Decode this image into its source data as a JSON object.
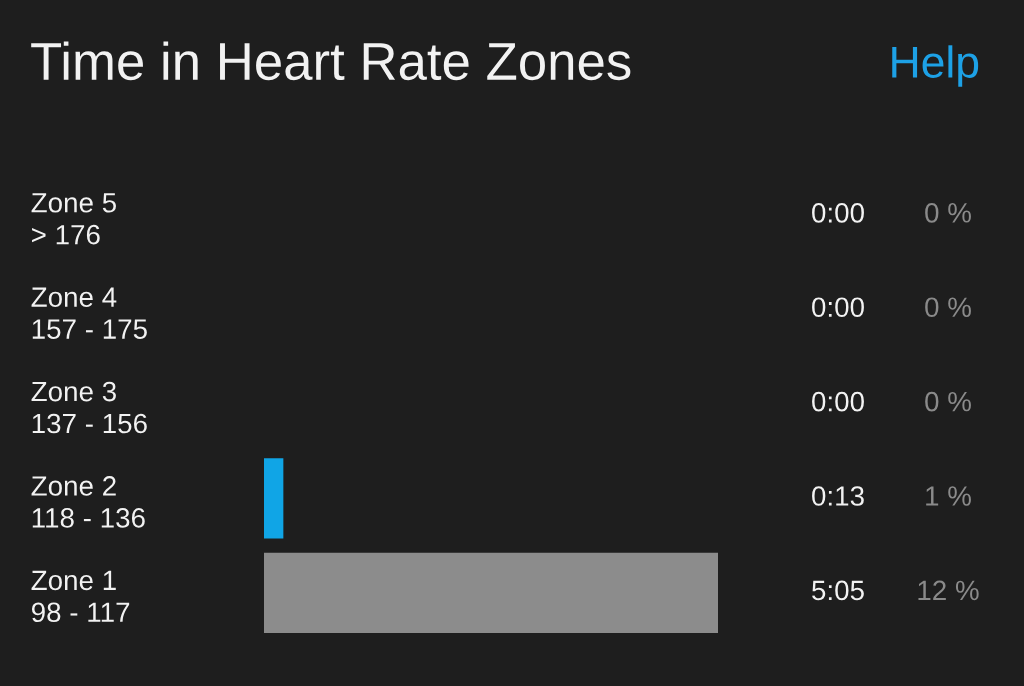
{
  "chart_data": {
    "type": "bar",
    "orientation": "horizontal",
    "title": "Time in Heart Rate Zones",
    "categories": [
      "Zone 5\n> 176",
      "Zone 4\n157 - 175",
      "Zone 3\n137 - 156",
      "Zone 2\n118 - 136",
      "Zone 1\n98 - 117"
    ],
    "values": [
      0,
      0,
      0,
      13,
      305
    ],
    "colors": [
      "#10a5e6",
      "#10a5e6",
      "#10a5e6",
      "#10a5e6",
      "#8c8c8c"
    ],
    "value_labels": [
      "0:00",
      "0:00",
      "0:00",
      "0:13",
      "5:05"
    ],
    "annotations": [
      "Help",
      "0 %",
      "0 %",
      "0 %",
      "1 %",
      "12 %"
    ]
  }
}
